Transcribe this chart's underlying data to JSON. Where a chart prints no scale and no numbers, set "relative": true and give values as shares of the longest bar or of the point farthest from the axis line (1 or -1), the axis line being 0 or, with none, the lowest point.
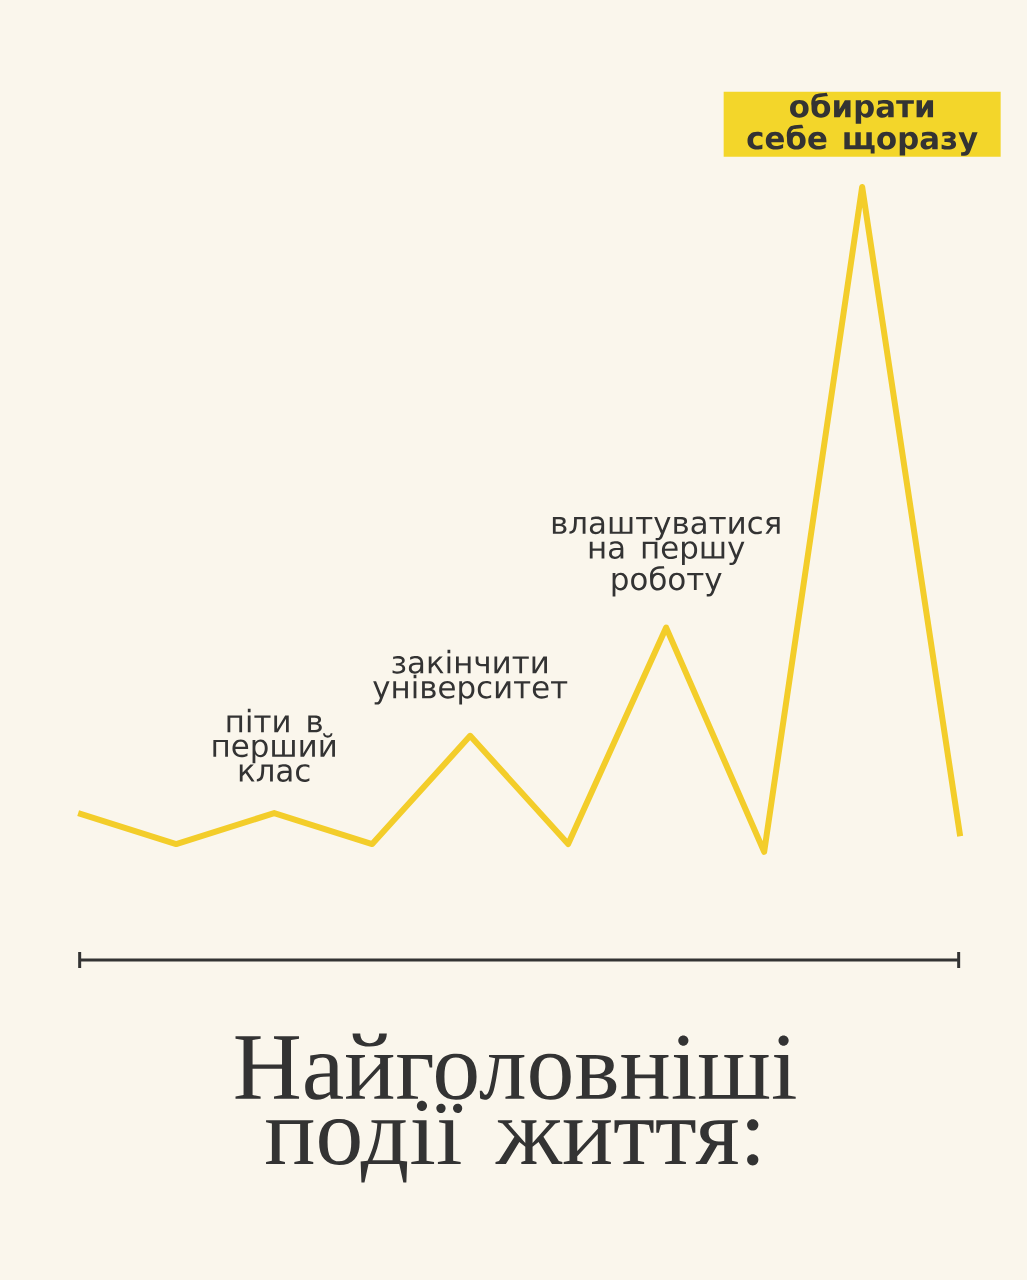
{
  "chart_data": {
    "type": "line",
    "title": "Найголовніші події життя:",
    "relative": true,
    "categories": [
      null,
      null,
      null,
      null,
      null,
      null,
      null,
      null,
      null,
      null
    ],
    "values": [
      0.19,
      0.15,
      0.19,
      0.15,
      0.29,
      0.15,
      0.43,
      0.14,
      1,
      0.16
    ],
    "color": "#f3cd2a",
    "annotations": [
      {
        "text": "піти в перший клас",
        "y": 0.19
      },
      {
        "text": "закінчити університет",
        "y": 0.29
      },
      {
        "text": "влаштуватися на першу роботу",
        "y": 0.43
      },
      {
        "text": "обирати себе щоразу",
        "y": 1
      }
    ]
  }
}
